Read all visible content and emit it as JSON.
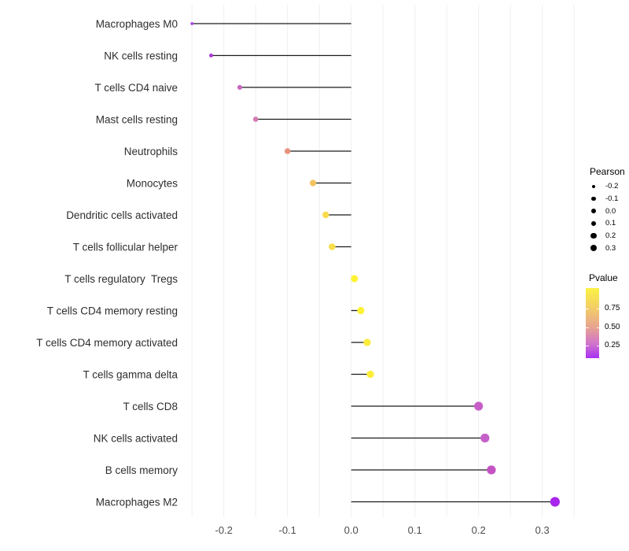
{
  "chart_data": {
    "type": "scatter",
    "style": "lollipop",
    "title": "",
    "xlabel": "",
    "ylabel": "",
    "xlim": [
      -0.26,
      0.36
    ],
    "x_ticks": [
      {
        "value": -0.2,
        "label": "-0.2"
      },
      {
        "value": -0.1,
        "label": "-0.1"
      },
      {
        "value": 0.0,
        "label": "0.0"
      },
      {
        "value": 0.1,
        "label": "0.1"
      },
      {
        "value": 0.2,
        "label": "0.2"
      },
      {
        "value": 0.3,
        "label": "0.3"
      }
    ],
    "grid": {
      "vertical_minor_step": 0.05,
      "color": "#efefef"
    },
    "stick_color": "#1b1b1b",
    "points": [
      {
        "label": "Macrophages M0",
        "pearson": -0.25,
        "pvalue": 0.13,
        "color": "#ab3ce0"
      },
      {
        "label": "NK cells resting",
        "pearson": -0.22,
        "pvalue": 0.12,
        "color": "#a93ad8"
      },
      {
        "label": "T cells CD4 naive",
        "pearson": -0.175,
        "pvalue": 0.3,
        "color": "#c767c0"
      },
      {
        "label": "Mast cells resting",
        "pearson": -0.15,
        "pvalue": 0.38,
        "color": "#d47cb2"
      },
      {
        "label": "Neutrophils",
        "pearson": -0.1,
        "pvalue": 0.58,
        "color": "#e8927e"
      },
      {
        "label": "Monocytes",
        "pearson": -0.06,
        "pvalue": 0.76,
        "color": "#f2c25e"
      },
      {
        "label": "Dendritic cells activated",
        "pearson": -0.04,
        "pvalue": 0.84,
        "color": "#f8dc4d"
      },
      {
        "label": "T cells follicular helper",
        "pearson": -0.03,
        "pvalue": 0.85,
        "color": "#f9e04b"
      },
      {
        "label": "T cells regulatory  Tregs",
        "pearson": 0.005,
        "pvalue": 0.92,
        "color": "#fdf233"
      },
      {
        "label": "T cells CD4 memory resting",
        "pearson": 0.015,
        "pvalue": 0.92,
        "color": "#fdf233"
      },
      {
        "label": "T cells CD4 memory activated",
        "pearson": 0.025,
        "pvalue": 0.89,
        "color": "#fbec3b"
      },
      {
        "label": "T cells gamma delta",
        "pearson": 0.03,
        "pvalue": 0.9,
        "color": "#fcee38"
      },
      {
        "label": "T cells CD8",
        "pearson": 0.2,
        "pvalue": 0.29,
        "color": "#c75ec8"
      },
      {
        "label": "NK cells activated",
        "pearson": 0.21,
        "pvalue": 0.3,
        "color": "#c660c9"
      },
      {
        "label": "B cells memory",
        "pearson": 0.22,
        "pvalue": 0.27,
        "color": "#c653c4"
      },
      {
        "label": "Macrophages M2",
        "pearson": 0.32,
        "pvalue": 0.05,
        "color": "#a826ec"
      }
    ],
    "legends": {
      "size": {
        "title": "Pearson",
        "entries": [
          "-0.2",
          "-0.1",
          "0.0",
          "0.1",
          "0.2",
          "0.3"
        ]
      },
      "color": {
        "title": "Pvalue",
        "ticks": [
          "0.75",
          "0.50",
          "0.25"
        ],
        "gradient_stops": [
          "#fbf243 0%",
          "#f3ce66 28%",
          "#e7a391 56%",
          "#cf73cd 80%",
          "#a930f2 100%"
        ],
        "high_color": "#ffff00",
        "low_color": "#a020f0"
      }
    }
  }
}
